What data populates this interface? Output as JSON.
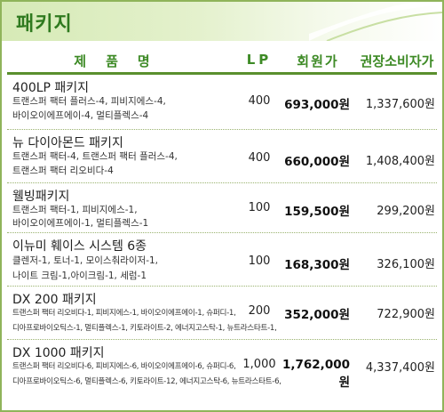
{
  "title": "패키지",
  "columns": {
    "name": "제품명",
    "lp": "LP",
    "member_price": "회원가",
    "retail_price": "권장소비자가"
  },
  "packages": [
    {
      "name": "400LP 패키지",
      "components": [
        "트랜스퍼 팩터 플러스-4, 피비지에스-4,",
        "바이오이에프에이-4, 멀티플렉스-4"
      ],
      "lp": "400",
      "member_price": "693,000원",
      "retail_price": "1,337,600원"
    },
    {
      "name": "뉴 다이아몬드 패키지",
      "components": [
        "트랜스퍼 팩터-4, 트랜스퍼 팩터 플러스-4,",
        "트랜스퍼 팩터 리오비다-4"
      ],
      "lp": "400",
      "member_price": "660,000원",
      "retail_price": "1,408,400원"
    },
    {
      "name": "웰빙패키지",
      "components": [
        "트랜스퍼 팩터-1, 피비지에스-1,",
        "바이오이에프에이-1, 멀티플렉스-1"
      ],
      "lp": "100",
      "member_price": "159,500원",
      "retail_price": "299,200원"
    },
    {
      "name": "이뉴미 훼이스 시스템 6종",
      "components": [
        "클렌저-1, 토너-1, 모이스춰라이저-1,",
        "나이트 크림-1,아이크림-1, 세럼-1"
      ],
      "lp": "100",
      "member_price": "168,300원",
      "retail_price": "326,100원"
    },
    {
      "name": "DX 200 패키지",
      "components": [
        "트랜스퍼 팩터 리오비다-1, 피비지에스-1, 바이오이에프에이-1, 슈퍼디-1,",
        "디아프로바이오틱스-1, 멀티플렉스-1, 키토라이트-2, 에너지고스탁-1, 뉴트라스타트-1,"
      ],
      "lp": "200",
      "member_price": "352,000원",
      "retail_price": "722,900원"
    },
    {
      "name": "DX 1000 패키지",
      "components": [
        "트랜스퍼 팩터 리오비다-6, 피비지에스-6, 바이오이에프에이-6, 슈퍼디-6,",
        "디아프로바이오틱스-6, 멀티플렉스-6, 키토라이트-12, 에너지고스탁-6, 뉴트라스타트-6,"
      ],
      "lp": "1,000",
      "member_price": "1,762,000원",
      "retail_price": "4,337,400원"
    }
  ],
  "colors": {
    "accent": "#3d8a25",
    "border": "#8fb45a",
    "title_band": "#d6eab6"
  }
}
